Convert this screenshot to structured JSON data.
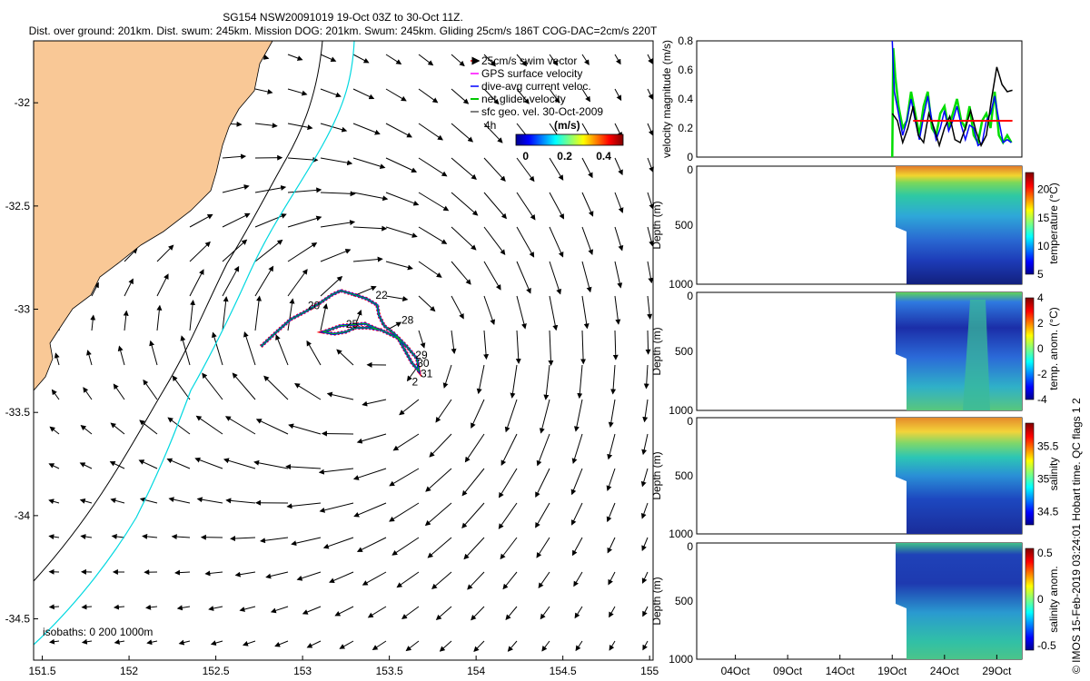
{
  "header": {
    "line1": "SG154 NSW20091019 19-Oct 03Z to 30-Oct 11Z.",
    "line2": "Dist. over ground: 201km. Dist. swum: 245km. Mission DOG: 201km. Swum: 245km. Gliding 25cm/s 186T COG-DAC=2cm/s 220T"
  },
  "footer_note": "© IMOS 15-Feb-2019 03:24:01 Hobart time. QC flags 1  2",
  "colors": {
    "land": "#f9c896",
    "coast_200m": "#00d8e0",
    "track_swim": "#ff0000",
    "track_gps": "#ff00ff",
    "track_dac": "#0000ff",
    "track_net": "#00c800",
    "speed_ref": "#ff0000",
    "model_speed": "#000000"
  },
  "chart_data": [
    {
      "type": "scatter",
      "title": "",
      "xlabel": "",
      "ylabel": "",
      "xlim": [
        151.45,
        155.02
      ],
      "ylim": [
        -34.7,
        -31.7
      ],
      "x_ticks": [
        "151.5",
        "152",
        "152.5",
        "153",
        "153.5",
        "154",
        "154.5",
        "155"
      ],
      "y_ticks": [
        "-32",
        "-32.5",
        "-33",
        "-33.5",
        "-34",
        "-34.5"
      ],
      "legend": {
        "placement": "top-right",
        "entries": [
          "25cm/s swim vector",
          "GPS surface velocity",
          "dive-avg current veloc.",
          "net glider velocity",
          "sfc geo. vel. 30-Oct-2009"
        ],
        "time_step": "4h",
        "colorbar_label": "(m/s)",
        "colorbar_ticks": [
          "0",
          "0.2",
          "0.4"
        ],
        "colorbar_range": [
          -0.05,
          0.5
        ]
      },
      "isobaths_label": "isobaths: 0   200   1000m",
      "day_labels": [
        {
          "text": "20",
          "lon": 153.03,
          "lat": -33.0
        },
        {
          "text": "22",
          "lon": 153.42,
          "lat": -32.95
        },
        {
          "text": "28",
          "lon": 153.57,
          "lat": -33.07
        },
        {
          "text": "29",
          "lon": 153.65,
          "lat": -33.24
        },
        {
          "text": "30",
          "lon": 153.66,
          "lat": -33.28
        },
        {
          "text": "31",
          "lon": 153.68,
          "lat": -33.33
        },
        {
          "text": "2",
          "lon": 153.63,
          "lat": -33.37
        },
        {
          "text": "25",
          "lon": 153.25,
          "lat": -33.09
        }
      ],
      "glider_track": [
        [
          152.76,
          -33.18
        ],
        [
          152.85,
          -33.11
        ],
        [
          152.93,
          -33.05
        ],
        [
          153.02,
          -33.01
        ],
        [
          153.1,
          -32.97
        ],
        [
          153.17,
          -32.93
        ],
        [
          153.22,
          -32.91
        ],
        [
          153.3,
          -32.93
        ],
        [
          153.37,
          -32.95
        ],
        [
          153.43,
          -32.98
        ],
        [
          153.44,
          -33.03
        ],
        [
          153.47,
          -33.08
        ],
        [
          153.53,
          -33.12
        ],
        [
          153.6,
          -33.18
        ],
        [
          153.66,
          -33.24
        ],
        [
          153.67,
          -33.3
        ],
        [
          153.63,
          -33.26
        ],
        [
          153.55,
          -33.14
        ],
        [
          153.45,
          -33.1
        ],
        [
          153.38,
          -33.09
        ],
        [
          153.3,
          -33.09
        ],
        [
          153.25,
          -33.11
        ],
        [
          153.18,
          -33.12
        ],
        [
          153.12,
          -33.11
        ],
        [
          153.22,
          -33.08
        ],
        [
          153.36,
          -33.07
        ],
        [
          153.44,
          -33.1
        ]
      ]
    },
    {
      "type": "line",
      "ylabel": "velocity magnitude (m/s)",
      "ylim": [
        0,
        0.8
      ],
      "y_ticks": [
        "0",
        "0.2",
        "0.4",
        "0.6",
        "0.8"
      ],
      "series": [
        {
          "color": "#00dd00",
          "x": [
            19.0,
            19.1,
            19.3,
            19.6,
            20.0,
            20.4,
            20.8,
            21.2,
            21.6,
            22.0,
            22.4,
            22.8,
            23.2,
            23.6,
            24.0,
            24.4,
            24.8,
            25.2,
            25.6,
            26.0,
            26.4,
            26.8,
            27.2,
            27.6,
            28.0,
            28.4,
            28.8,
            29.2,
            29.6,
            30.0,
            30.4
          ],
          "values": [
            0.0,
            0.75,
            0.55,
            0.35,
            0.2,
            0.25,
            0.45,
            0.3,
            0.15,
            0.35,
            0.45,
            0.2,
            0.15,
            0.3,
            0.35,
            0.2,
            0.3,
            0.4,
            0.25,
            0.2,
            0.35,
            0.15,
            0.1,
            0.25,
            0.3,
            0.2,
            0.45,
            0.15,
            0.1,
            0.15,
            0.1
          ]
        },
        {
          "color": "#0000ff",
          "x": [
            19.0,
            19.2,
            19.6,
            20.0,
            20.4,
            20.8,
            21.2,
            21.6,
            22.0,
            22.4,
            22.8,
            23.2,
            23.6,
            24.0,
            24.4,
            24.8,
            25.2,
            25.6,
            26.0,
            26.4,
            26.8,
            27.2,
            27.6,
            28.0,
            28.4,
            28.8,
            29.2,
            29.6,
            30.0,
            30.4
          ],
          "values": [
            0.8,
            0.45,
            0.3,
            0.15,
            0.25,
            0.4,
            0.25,
            0.12,
            0.28,
            0.42,
            0.25,
            0.12,
            0.2,
            0.32,
            0.18,
            0.25,
            0.35,
            0.22,
            0.12,
            0.22,
            0.2,
            0.08,
            0.1,
            0.25,
            0.3,
            0.42,
            0.25,
            0.1,
            0.12,
            0.1
          ]
        },
        {
          "color": "#000000",
          "x": [
            19.0,
            19.5,
            20.0,
            20.5,
            21.0,
            21.5,
            22.0,
            22.5,
            23.0,
            23.5,
            24.0,
            24.5,
            25.0,
            25.5,
            26.0,
            26.5,
            27.0,
            27.5,
            28.0,
            28.5,
            29.0,
            29.5,
            30.0,
            30.5
          ],
          "values": [
            0.3,
            0.25,
            0.1,
            0.2,
            0.35,
            0.15,
            0.1,
            0.3,
            0.2,
            0.08,
            0.2,
            0.28,
            0.12,
            0.1,
            0.2,
            0.32,
            0.18,
            0.08,
            0.15,
            0.4,
            0.62,
            0.5,
            0.45,
            0.46
          ]
        },
        {
          "color": "#ff0000",
          "x": [
            21.0,
            30.5
          ],
          "values": [
            0.25,
            0.25
          ]
        }
      ]
    },
    {
      "type": "heatmap",
      "ylabel": "Depth (m)",
      "colorbar_label": "temperature (°C)",
      "colorbar_ticks": [
        "5",
        "10",
        "15",
        "20"
      ],
      "range": [
        5,
        23
      ],
      "y_ticks": [
        "0",
        "500",
        "1000"
      ]
    },
    {
      "type": "heatmap",
      "ylabel": "Depth (m)",
      "colorbar_label": "temp. anom. (°C)",
      "colorbar_ticks": [
        "-4",
        "-2",
        "0",
        "2",
        "4"
      ],
      "range": [
        -4,
        4
      ],
      "y_ticks": [
        "0",
        "500",
        "1000"
      ]
    },
    {
      "type": "heatmap",
      "ylabel": "Depth (m)",
      "colorbar_label": "salinity",
      "colorbar_ticks": [
        "34.5",
        "35",
        "35.5"
      ],
      "range": [
        34.3,
        35.85
      ],
      "y_ticks": [
        "0",
        "500",
        "1000"
      ]
    },
    {
      "type": "heatmap",
      "ylabel": "Depth (m)",
      "colorbar_label": "salinity anom.",
      "colorbar_ticks": [
        "-0.5",
        "0",
        "0.5"
      ],
      "range": [
        -0.55,
        0.55
      ],
      "y_ticks": [
        "0",
        "500",
        "1000"
      ],
      "x_ticks": [
        "04Oct",
        "09Oct",
        "14Oct",
        "19Oct",
        "24Oct",
        "29Oct"
      ]
    }
  ]
}
